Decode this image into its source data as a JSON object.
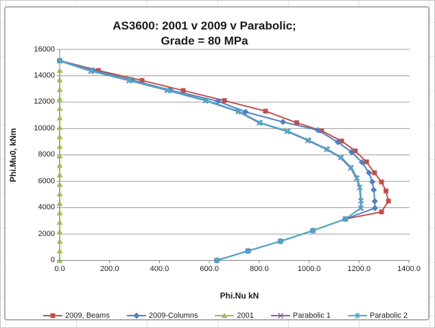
{
  "chart": {
    "title_line1": "AS3600: 2001 v 2009 v Parabolic;",
    "title_line2": "Grade = 80 MPa",
    "x_axis_title": "Phi.Nu kN",
    "y_axis_title": "Phi.Mu0, kNm"
  },
  "colors": {
    "beams_red": "#C0504D",
    "columns_blue": "#4F81BD",
    "green_2001": "#9BBB59",
    "parabolic1_purple": "#8064A2",
    "parabolic2_cyan": "#4BACC6",
    "gridline_gray": "#9a9a9a",
    "axis_gray": "#808080"
  },
  "chart_data": {
    "type": "line",
    "title": "AS3600: 2001 v 2009 v Parabolic; Grade = 80 MPa",
    "xlabel": "Phi.Nu kN",
    "ylabel": "Phi.Mu0, kNm",
    "xlim": [
      0,
      1400
    ],
    "ylim": [
      0,
      16000
    ],
    "x_tick_step": 200,
    "y_tick_step": 2000,
    "x_tick_labels": [
      "0.0",
      "200.0",
      "400.0",
      "600.0",
      "800.0",
      "1000.0",
      "1200.0",
      "1400.0"
    ],
    "y_tick_labels": [
      "0",
      "2000",
      "4000",
      "6000",
      "8000",
      "10000",
      "12000",
      "14000",
      "16000"
    ],
    "grid": "horizontal-only",
    "legend_position": "bottom",
    "series": [
      {
        "name": "2009, Beams",
        "color": "#C0504D",
        "marker": "square",
        "points": [
          [
            0,
            15150
          ],
          [
            155,
            14400
          ],
          [
            330,
            13650
          ],
          [
            495,
            12880
          ],
          [
            660,
            12120
          ],
          [
            825,
            11320
          ],
          [
            950,
            10440
          ],
          [
            1050,
            9830
          ],
          [
            1130,
            9050
          ],
          [
            1185,
            8300
          ],
          [
            1230,
            7470
          ],
          [
            1262,
            6640
          ],
          [
            1290,
            5950
          ],
          [
            1308,
            5270
          ],
          [
            1318,
            4500
          ],
          [
            1290,
            3680
          ],
          [
            1145,
            3140
          ],
          [
            1015,
            2260
          ],
          [
            885,
            1450
          ],
          [
            755,
            720
          ],
          [
            630,
            0
          ]
        ]
      },
      {
        "name": "2009-Columns",
        "color": "#4F81BD",
        "marker": "diamond",
        "points": [
          [
            0,
            15150
          ],
          [
            135,
            14420
          ],
          [
            290,
            13680
          ],
          [
            445,
            12900
          ],
          [
            635,
            12070
          ],
          [
            745,
            11260
          ],
          [
            895,
            10500
          ],
          [
            1035,
            9880
          ],
          [
            1115,
            8970
          ],
          [
            1170,
            8210
          ],
          [
            1212,
            7440
          ],
          [
            1240,
            6650
          ],
          [
            1253,
            5960
          ],
          [
            1259,
            5350
          ],
          [
            1263,
            4490
          ],
          [
            1264,
            3970
          ],
          [
            1145,
            3140
          ],
          [
            1015,
            2260
          ],
          [
            885,
            1450
          ],
          [
            755,
            720
          ],
          [
            630,
            0
          ]
        ]
      },
      {
        "name": "2001",
        "color": "#9BBB59",
        "marker": "triangle",
        "points": [
          [
            0,
            0
          ],
          [
            0,
            720
          ],
          [
            0,
            1440
          ],
          [
            0,
            2160
          ],
          [
            0,
            2880
          ],
          [
            0,
            3600
          ],
          [
            0,
            4320
          ],
          [
            0,
            5040
          ],
          [
            0,
            5760
          ],
          [
            0,
            6480
          ],
          [
            0,
            7200
          ],
          [
            0,
            7920
          ],
          [
            0,
            8640
          ],
          [
            0,
            9360
          ],
          [
            0,
            10080
          ],
          [
            0,
            10800
          ],
          [
            0,
            11520
          ],
          [
            0,
            12240
          ],
          [
            0,
            12960
          ],
          [
            0,
            13680
          ],
          [
            0,
            14400
          ]
        ]
      },
      {
        "name": "Parabolic 1",
        "color": "#8064A2",
        "marker": "x",
        "points": [
          [
            0,
            15120
          ],
          [
            125,
            14350
          ],
          [
            278,
            13640
          ],
          [
            430,
            12900
          ],
          [
            585,
            12110
          ],
          [
            715,
            11290
          ],
          [
            800,
            10430
          ],
          [
            912,
            9780
          ],
          [
            995,
            9090
          ],
          [
            1070,
            8420
          ],
          [
            1126,
            7790
          ],
          [
            1166,
            7010
          ],
          [
            1190,
            6230
          ],
          [
            1202,
            5530
          ],
          [
            1207,
            4520
          ],
          [
            1207,
            3970
          ],
          [
            1145,
            3140
          ],
          [
            1015,
            2260
          ],
          [
            885,
            1450
          ],
          [
            755,
            720
          ],
          [
            630,
            0
          ]
        ]
      },
      {
        "name": "Parabolic 2",
        "color": "#4BACC6",
        "marker": "star",
        "points": [
          [
            0,
            15120
          ],
          [
            128,
            14360
          ],
          [
            282,
            13650
          ],
          [
            435,
            12910
          ],
          [
            590,
            12120
          ],
          [
            720,
            11300
          ],
          [
            805,
            10440
          ],
          [
            916,
            9790
          ],
          [
            1000,
            9100
          ],
          [
            1074,
            8430
          ],
          [
            1130,
            7800
          ],
          [
            1170,
            7020
          ],
          [
            1193,
            6240
          ],
          [
            1204,
            5540
          ],
          [
            1209,
            4530
          ],
          [
            1209,
            3980
          ],
          [
            1145,
            3140
          ],
          [
            1015,
            2260
          ],
          [
            885,
            1450
          ],
          [
            755,
            720
          ],
          [
            630,
            0
          ]
        ]
      }
    ]
  }
}
